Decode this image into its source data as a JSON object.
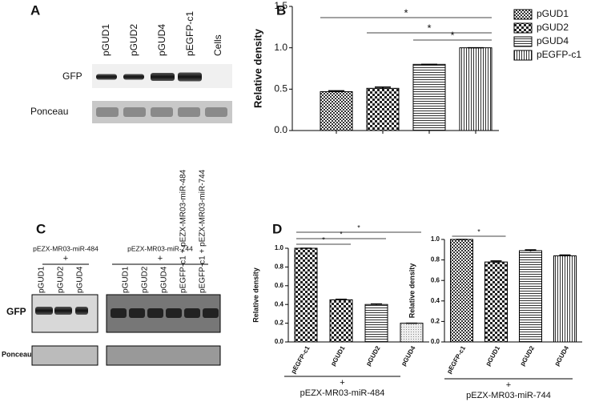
{
  "panel_labels": [
    "A",
    "B",
    "C",
    "D"
  ],
  "blot_a": {
    "lanes": [
      "pGUD1",
      "pGUD2",
      "pGUD4",
      "pEGFP-c1",
      "Cells"
    ],
    "rows": [
      "GFP",
      "Ponceau"
    ]
  },
  "blot_c": {
    "groups": [
      {
        "name": "pEZX-MR03-miR-484",
        "sign": "+"
      },
      {
        "name": "pEZX-MR03-miR-744",
        "sign": "+"
      }
    ],
    "lanes": [
      "pGUD1",
      "pGUD2",
      "pGUD4",
      "pGUD1",
      "pGUD2",
      "pGUD4",
      "pEGFP-c1 + pEZX-MR03-miR-484",
      "pEGFP-c1 + pEZX-MR03-miR-744"
    ],
    "rows": [
      "GFP",
      "Ponceau"
    ]
  },
  "chart_data": [
    {
      "type": "bar",
      "ylabel": "Relative density",
      "legend": true,
      "categories": [
        "pGUD1",
        "pGUD2",
        "pGUD4",
        "pEGFP-c1"
      ],
      "values": [
        0.47,
        0.51,
        0.8,
        1.0
      ],
      "errors": [
        0.01,
        0.015,
        0,
        0
      ],
      "ylim": [
        0,
        1.5
      ],
      "yticks": [
        {
          "value": 0,
          "label": "0.0"
        },
        0.5,
        {
          "value": 1,
          "label": "1.0"
        },
        1.5
      ],
      "significance": [
        {
          "from": 0,
          "to": 3,
          "label": "*"
        },
        {
          "from": 1,
          "to": 3,
          "label": "*"
        },
        {
          "from": 2,
          "to": 3,
          "label": "*"
        }
      ]
    },
    {
      "type": "bar",
      "ylabel": "Relative density",
      "legend": false,
      "categories": [
        "pEGFP-c1",
        "pGUD1",
        "pGUD2",
        "pGUD4"
      ],
      "values": [
        1.0,
        0.45,
        0.4,
        0.2
      ],
      "errors": [
        0,
        0.005,
        0.005,
        0
      ],
      "ylim": [
        0,
        1.0
      ],
      "yticks": [
        {
          "value": 0,
          "label": "0.0"
        },
        0.2,
        0.4,
        0.6,
        0.8,
        {
          "value": 1,
          "label": "1.0"
        }
      ],
      "xlabel": "pEZX-MR03-miR-484",
      "xlabel_sign": "+",
      "significance": [
        {
          "from": 0,
          "to": 3,
          "label": "*"
        },
        {
          "from": 0,
          "to": 2,
          "label": "*"
        },
        {
          "from": 0,
          "to": 1,
          "label": "*"
        }
      ]
    },
    {
      "type": "bar",
      "ylabel": "Relative density",
      "legend": false,
      "categories": [
        "pEGFP-c1",
        "pGUD1",
        "pGUD2",
        "pGUD4"
      ],
      "values": [
        1.0,
        0.78,
        0.89,
        0.84
      ],
      "errors": [
        0,
        0.01,
        0.008,
        0.008
      ],
      "ylim": [
        0,
        1.0
      ],
      "yticks": [
        {
          "value": 0,
          "label": "0.0"
        },
        0.2,
        0.4,
        0.6,
        0.8,
        {
          "value": 1,
          "label": "1.0"
        }
      ],
      "xlabel": "pEZX-MR03-miR-744",
      "xlabel_sign": "+",
      "significance": [
        {
          "from": 0,
          "to": 1,
          "label": "*"
        }
      ]
    }
  ]
}
